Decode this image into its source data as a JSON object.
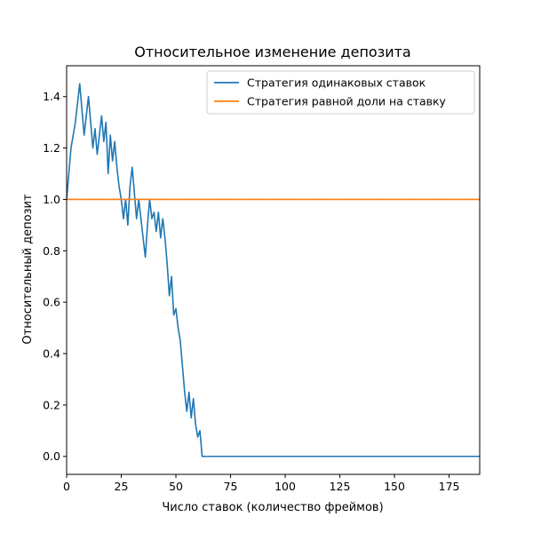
{
  "chart_data": {
    "type": "line",
    "title": "Относительное изменение депозита",
    "xlabel": "Число ставок (количество фреймов)",
    "ylabel": "Относительный депозит",
    "xlim": [
      0,
      189
    ],
    "ylim": [
      -0.07,
      1.52
    ],
    "xticks": [
      0,
      25,
      50,
      75,
      100,
      125,
      150,
      175
    ],
    "yticks": [
      0.0,
      0.2,
      0.4,
      0.6,
      0.8,
      1.0,
      1.2,
      1.4
    ],
    "ytick_labels": [
      "0.0",
      "0.2",
      "0.4",
      "0.6",
      "0.8",
      "1.0",
      "1.2",
      "1.4"
    ],
    "grid": false,
    "legend": "top-right",
    "series": [
      {
        "name": "Стратегия одинаковых ставок",
        "color": "#1f77b4",
        "x": [
          0,
          2,
          4,
          6,
          8,
          10,
          12,
          13,
          14,
          15,
          16,
          17,
          18,
          19,
          20,
          21,
          22,
          23,
          24,
          25,
          26,
          27,
          28,
          29,
          30,
          31,
          32,
          33,
          34,
          35,
          36,
          37,
          38,
          39,
          40,
          41,
          42,
          43,
          44,
          45,
          46,
          47,
          48,
          49,
          50,
          51,
          52,
          53,
          54,
          55,
          56,
          57,
          58,
          59,
          60,
          61,
          62,
          63,
          64,
          65,
          66,
          70,
          80,
          100,
          120,
          140,
          160,
          189
        ],
        "y": [
          1.0,
          1.2,
          1.3,
          1.45,
          1.25,
          1.4,
          1.2,
          1.275,
          1.175,
          1.25,
          1.325,
          1.225,
          1.3,
          1.1,
          1.25,
          1.15,
          1.225,
          1.125,
          1.05,
          1.0,
          0.925,
          1.0,
          0.9,
          1.05,
          1.125,
          1.025,
          0.925,
          1.0,
          0.925,
          0.85,
          0.775,
          0.9,
          1.0,
          0.925,
          0.95,
          0.875,
          0.95,
          0.85,
          0.925,
          0.85,
          0.75,
          0.625,
          0.7,
          0.55,
          0.575,
          0.5,
          0.45,
          0.35,
          0.25,
          0.175,
          0.25,
          0.15,
          0.225,
          0.125,
          0.075,
          0.1,
          0.0,
          0.0,
          0.0,
          0.0,
          0.0,
          0.0,
          0.0,
          0.0,
          0.0,
          0.0,
          0.0,
          0.0
        ]
      },
      {
        "name": "Стратегия равной доли на ставку",
        "color": "#ff7f0e",
        "x": [
          0,
          189
        ],
        "y": [
          1.0,
          1.0
        ]
      }
    ],
    "reference_line": {
      "y": 1.0,
      "color": "#555555",
      "style": "dotted"
    }
  }
}
